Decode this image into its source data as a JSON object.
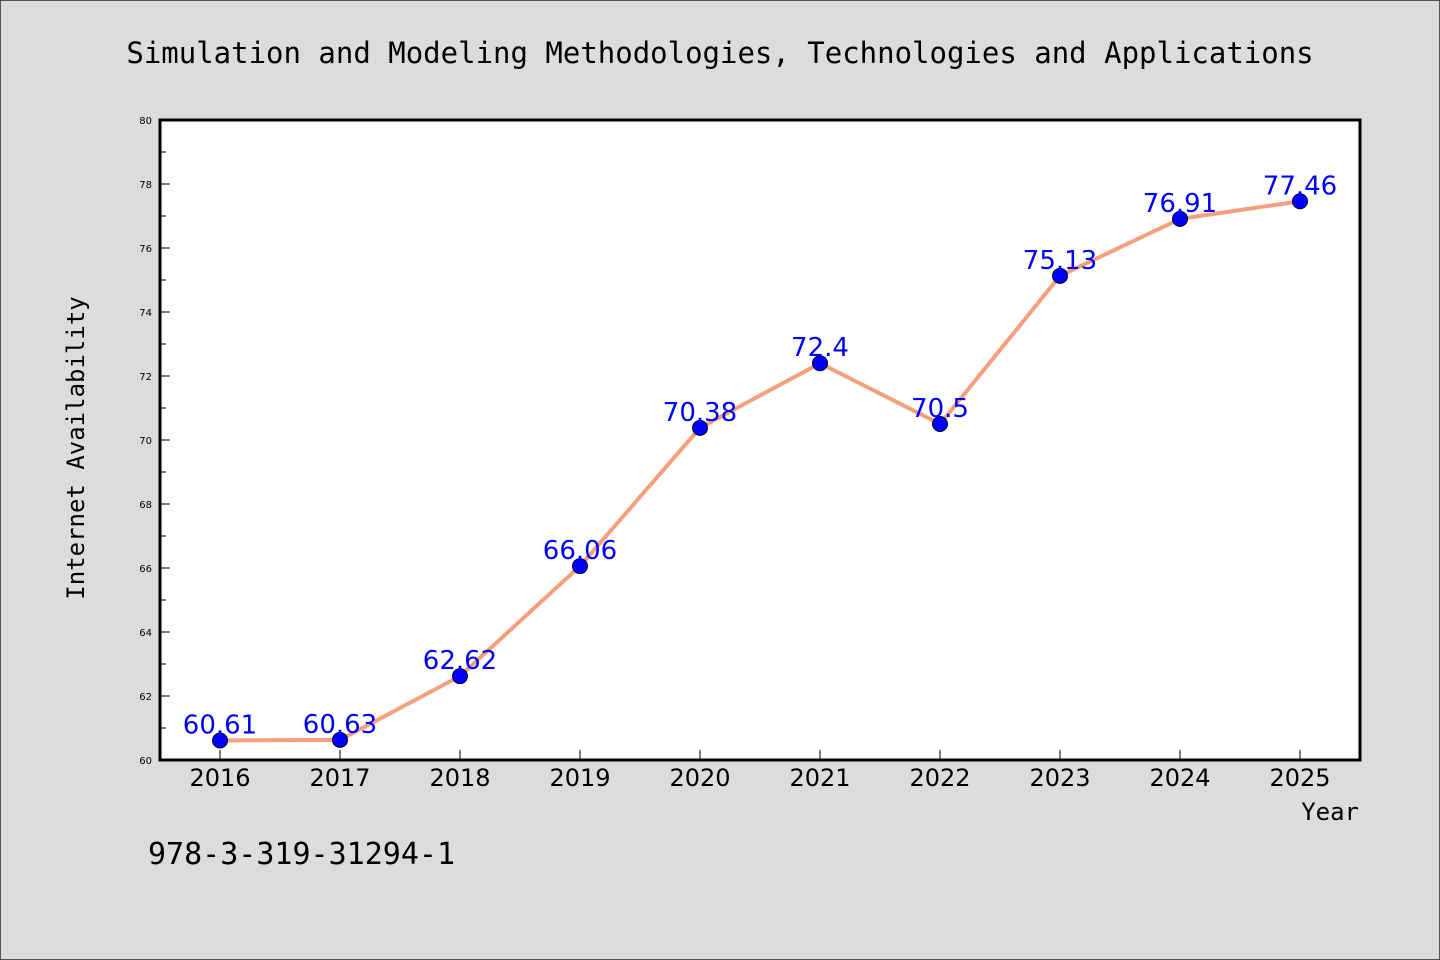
{
  "chart_data": {
    "type": "line",
    "title": "Simulation and Modeling Methodologies, Technologies and Applications",
    "xlabel": "Year",
    "ylabel": "Internet Availability",
    "categories": [
      "2016",
      "2017",
      "2018",
      "2019",
      "2020",
      "2021",
      "2022",
      "2023",
      "2024",
      "2025"
    ],
    "series": [
      {
        "values": [
          60.61,
          60.63,
          62.62,
          66.06,
          70.38,
          72.4,
          70.5,
          75.13,
          76.91,
          77.46
        ],
        "labels": [
          "60.61",
          "60.63",
          "62.62",
          "66.06",
          "70.38",
          "72.4",
          "70.5",
          "75.13",
          "76.91",
          "77.46"
        ]
      }
    ],
    "ylim": [
      60,
      80
    ],
    "yticks": [
      "60",
      "62",
      "64",
      "66",
      "68",
      "70",
      "72",
      "74",
      "76",
      "78",
      "80"
    ],
    "grid": false,
    "colors": {
      "line": "#f4a07e",
      "marker": "#0000ff",
      "label": "#0000ff"
    }
  },
  "footnote": "978-3-319-31294-1"
}
